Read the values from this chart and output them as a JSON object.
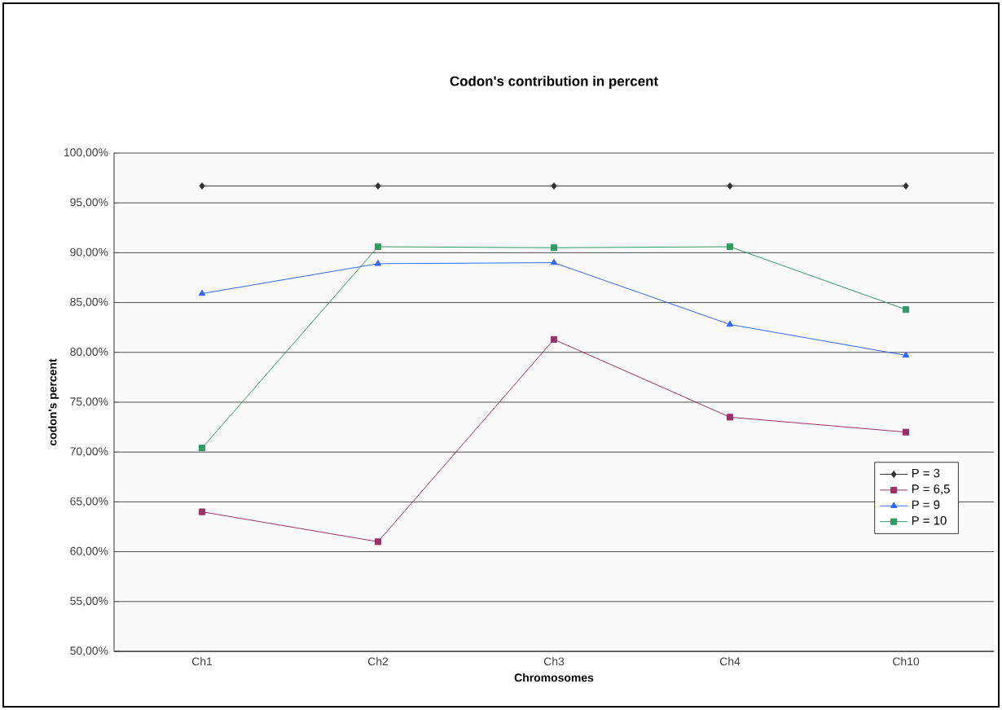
{
  "chart_data": {
    "type": "line",
    "title": "Codon's contribution in percent",
    "xlabel": "Chromosomes",
    "ylabel": "codon's percent",
    "categories": [
      "Ch1",
      "Ch2",
      "Ch3",
      "Ch4",
      "Ch10"
    ],
    "series": [
      {
        "name": "P = 3",
        "color": "#333333",
        "marker": "diamond",
        "values": [
          96.7,
          96.7,
          96.7,
          96.7,
          96.7
        ]
      },
      {
        "name": "P = 6,5",
        "color": "#993366",
        "marker": "square",
        "values": [
          64.0,
          61.0,
          81.3,
          73.5,
          72.0
        ]
      },
      {
        "name": "P = 9",
        "color": "#3366ff",
        "marker": "triangle",
        "values": [
          85.9,
          88.9,
          89.0,
          82.8,
          79.7
        ]
      },
      {
        "name": "P = 10",
        "color": "#339966",
        "marker": "square",
        "values": [
          70.4,
          90.6,
          90.5,
          90.6,
          84.3
        ]
      }
    ],
    "ylim": [
      50,
      100
    ],
    "yticks": [
      {
        "value": 50,
        "label": "50,00%"
      },
      {
        "value": 55,
        "label": "55,00%"
      },
      {
        "value": 60,
        "label": "60,00%"
      },
      {
        "value": 65,
        "label": "65,00%"
      },
      {
        "value": 70,
        "label": "70,00%"
      },
      {
        "value": 75,
        "label": "75,00%"
      },
      {
        "value": 80,
        "label": "80,00%"
      },
      {
        "value": 85,
        "label": "85,00%"
      },
      {
        "value": 90,
        "label": "90,00%"
      },
      {
        "value": 95,
        "label": "95,00%"
      },
      {
        "value": 100,
        "label": "100,00%"
      }
    ],
    "grid": "y",
    "legend": "right"
  }
}
